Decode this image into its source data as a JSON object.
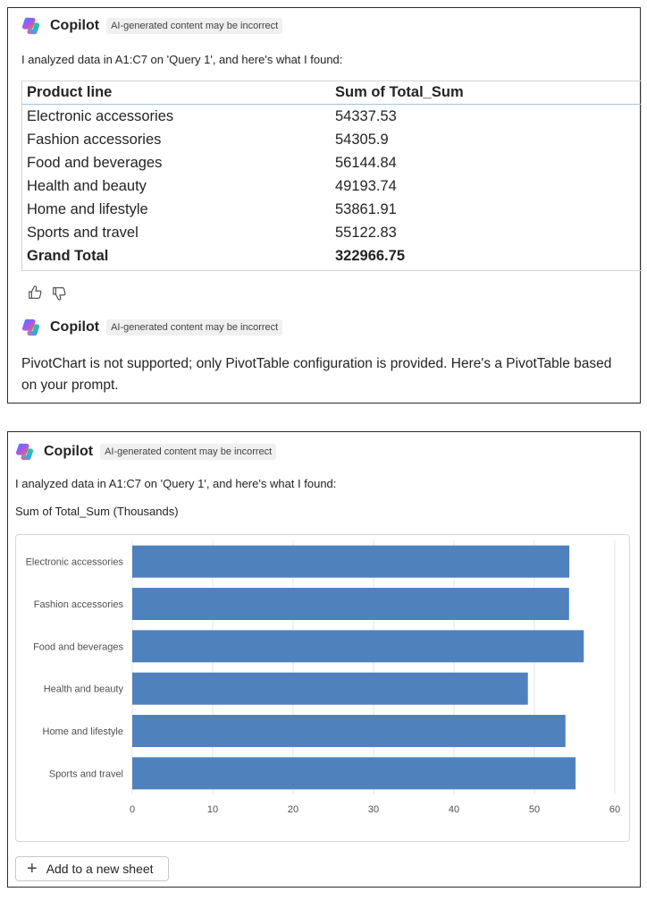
{
  "panel1": {
    "header": {
      "name": "Copilot",
      "badge": "AI-generated content may be incorrect"
    },
    "intro": "I analyzed data in A1:C7 on 'Query 1', and here's what I found:",
    "table": {
      "headers": [
        "Product line",
        "Sum of Total_Sum"
      ],
      "rows": [
        [
          "Electronic accessories",
          "54337.53"
        ],
        [
          "Fashion accessories",
          "54305.9"
        ],
        [
          "Food and beverages",
          "56144.84"
        ],
        [
          "Health and beauty",
          "49193.74"
        ],
        [
          "Home and lifestyle",
          "53861.91"
        ],
        [
          "Sports and travel",
          "55122.83"
        ]
      ],
      "total": [
        "Grand Total",
        "322966.75"
      ]
    },
    "header2": {
      "name": "Copilot",
      "badge": "AI-generated content may be incorrect"
    },
    "message": "PivotChart is not supported; only PivotTable configuration is provided. Here's a PivotTable based on your prompt."
  },
  "panel2": {
    "header": {
      "name": "Copilot",
      "badge": "AI-generated content may be incorrect"
    },
    "intro": "I analyzed data in A1:C7 on 'Query 1', and here's what I found:",
    "chart_title": "Sum of Total_Sum (Thousands)",
    "add_button": "Add to a new sheet"
  },
  "chart_data": {
    "type": "bar",
    "orientation": "horizontal",
    "title": "Sum of Total_Sum (Thousands)",
    "categories": [
      "Electronic accessories",
      "Fashion accessories",
      "Food and beverages",
      "Health and beauty",
      "Home and lifestyle",
      "Sports and travel"
    ],
    "values": [
      54.34,
      54.31,
      56.14,
      49.19,
      53.86,
      55.12
    ],
    "xlim": [
      0,
      60
    ],
    "xticks": [
      "0",
      "10",
      "20",
      "30",
      "40",
      "50",
      "60"
    ],
    "grid": true,
    "legend": "none",
    "bar_color": "#4f81bd"
  },
  "colors": {
    "bar": "#4f81bd",
    "grid": "#e6e6e6",
    "axis_text": "#505050"
  }
}
